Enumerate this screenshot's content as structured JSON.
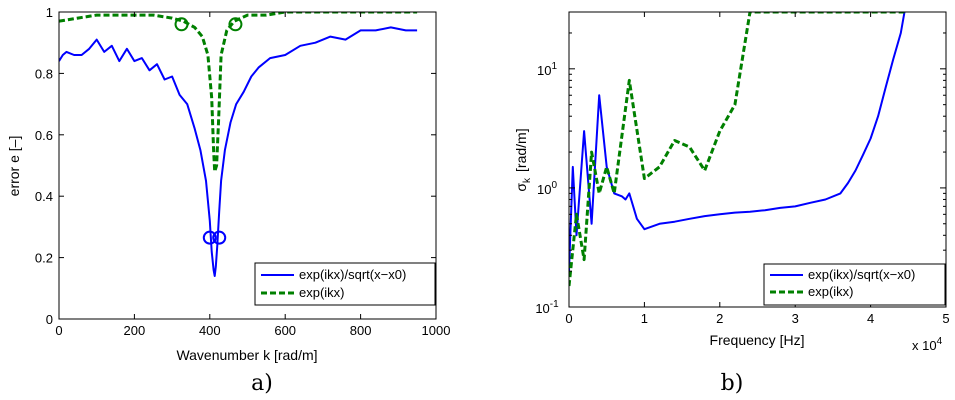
{
  "chart_data": [
    {
      "type": "line",
      "panel_label": "a)",
      "title": "",
      "xlabel": "Wavenumber k [rad/m]",
      "ylabel": "error e [–]",
      "xlim": [
        0,
        1000
      ],
      "ylim": [
        0,
        1
      ],
      "xticks": [
        "0",
        "200",
        "400",
        "600",
        "800",
        "1000"
      ],
      "yticks": [
        "0",
        "0.2",
        "0.4",
        "0.6",
        "0.8",
        "1"
      ],
      "grid": false,
      "legend_position": "bottom-right",
      "series": [
        {
          "name": "exp(ikx)/sqrt(x−x0)",
          "color": "#0000ff",
          "style": "solid",
          "x": [
            0,
            10,
            20,
            40,
            60,
            80,
            100,
            120,
            140,
            160,
            180,
            200,
            220,
            240,
            260,
            280,
            300,
            320,
            340,
            360,
            375,
            390,
            400,
            405,
            410,
            413,
            416,
            420,
            425,
            430,
            440,
            455,
            470,
            490,
            510,
            530,
            560,
            600,
            640,
            680,
            720,
            760,
            800,
            840,
            880,
            920,
            950
          ],
          "y": [
            0.84,
            0.86,
            0.87,
            0.86,
            0.86,
            0.88,
            0.91,
            0.87,
            0.89,
            0.84,
            0.88,
            0.84,
            0.85,
            0.81,
            0.83,
            0.78,
            0.79,
            0.73,
            0.7,
            0.62,
            0.55,
            0.45,
            0.32,
            0.22,
            0.16,
            0.14,
            0.17,
            0.24,
            0.35,
            0.45,
            0.55,
            0.64,
            0.7,
            0.74,
            0.79,
            0.82,
            0.85,
            0.86,
            0.89,
            0.9,
            0.92,
            0.91,
            0.94,
            0.94,
            0.95,
            0.94,
            0.94
          ]
        },
        {
          "name": "exp(ikx)",
          "color": "#008000",
          "style": "dashed",
          "x": [
            0,
            50,
            100,
            150,
            200,
            250,
            300,
            330,
            360,
            380,
            395,
            405,
            410,
            413,
            418,
            423,
            430,
            445,
            465,
            500,
            550,
            600,
            700,
            800,
            900,
            950
          ],
          "y": [
            0.97,
            0.98,
            0.99,
            0.99,
            0.99,
            0.99,
            0.98,
            0.97,
            0.95,
            0.92,
            0.86,
            0.72,
            0.55,
            0.48,
            0.5,
            0.64,
            0.86,
            0.94,
            0.97,
            0.99,
            0.99,
            1.0,
            1.0,
            1.0,
            1.0,
            1.0
          ]
        }
      ],
      "markers": [
        {
          "series": "exp(ikx)/sqrt(x−x0)",
          "x": 400,
          "y": 0.265
        },
        {
          "series": "exp(ikx)/sqrt(x−x0)",
          "x": 425,
          "y": 0.265
        },
        {
          "series": "exp(ikx)",
          "x": 325,
          "y": 0.96
        },
        {
          "series": "exp(ikx)",
          "x": 468,
          "y": 0.96
        }
      ]
    },
    {
      "type": "line",
      "panel_label": "b)",
      "title": "",
      "xlabel": "Frequency [Hz]",
      "ylabel": "σk [rad/m]",
      "ylabel_main": "σ",
      "ylabel_sub": "k",
      "ylabel_unit": "[rad/m]",
      "x_multiplier": "x 10",
      "x_multiplier_exp": "4",
      "xlim": [
        0,
        5
      ],
      "ylim": [
        0.1,
        30
      ],
      "yscale": "log",
      "xticks": [
        "0",
        "1",
        "2",
        "3",
        "4",
        "5"
      ],
      "yticks": [
        {
          "value": 0.1,
          "base": "10",
          "exp": "-1"
        },
        {
          "value": 1,
          "base": "10",
          "exp": "0"
        },
        {
          "value": 10,
          "base": "10",
          "exp": "1"
        }
      ],
      "grid": false,
      "legend_position": "bottom-right",
      "series": [
        {
          "name": "exp(ikx)/sqrt(x−x0)",
          "color": "#0000ff",
          "style": "solid",
          "x": [
            0,
            0.05,
            0.1,
            0.2,
            0.3,
            0.4,
            0.5,
            0.6,
            0.7,
            0.75,
            0.8,
            0.9,
            1.0,
            1.2,
            1.4,
            1.6,
            1.8,
            2.0,
            2.2,
            2.4,
            2.6,
            2.8,
            3.0,
            3.2,
            3.4,
            3.6,
            3.7,
            3.8,
            3.9,
            4.0,
            4.1,
            4.2,
            4.3,
            4.4,
            4.45
          ],
          "y": [
            0.2,
            1.5,
            0.4,
            3,
            0.5,
            6,
            1.5,
            0.9,
            0.85,
            0.8,
            0.9,
            0.55,
            0.45,
            0.5,
            0.52,
            0.55,
            0.58,
            0.6,
            0.62,
            0.63,
            0.65,
            0.68,
            0.7,
            0.75,
            0.8,
            0.9,
            1.1,
            1.4,
            1.9,
            2.6,
            4,
            7,
            12,
            20,
            30
          ]
        },
        {
          "name": "exp(ikx)",
          "color": "#008000",
          "style": "dashed",
          "x": [
            0,
            0.1,
            0.2,
            0.3,
            0.4,
            0.5,
            0.6,
            0.8,
            1.0,
            1.2,
            1.4,
            1.6,
            1.8,
            2.0,
            2.2,
            2.4,
            3.0,
            4.0,
            4.45
          ],
          "y": [
            0.15,
            0.6,
            0.25,
            2,
            0.9,
            1.5,
            0.9,
            8,
            1.2,
            1.5,
            2.5,
            2.2,
            1.4,
            3,
            5,
            30,
            30,
            30,
            30
          ]
        }
      ]
    }
  ]
}
